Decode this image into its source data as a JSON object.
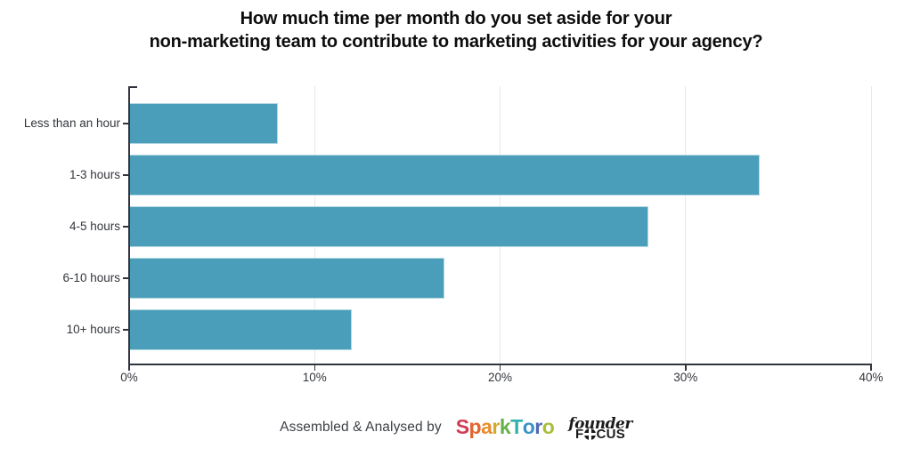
{
  "title": {
    "line1": "How much time per month do you set aside for your",
    "line2": "non-marketing team to contribute to marketing activities for your agency?"
  },
  "chart_data": {
    "type": "bar",
    "orientation": "horizontal",
    "title": "How much time per month do you set aside for your non-marketing team to contribute to marketing activities for your agency?",
    "categories": [
      "Less than an hour",
      "1-3 hours",
      "4-5 hours",
      "6-10 hours",
      "10+ hours"
    ],
    "values": [
      8,
      34,
      28,
      17,
      12
    ],
    "value_unit": "%",
    "xlabel": "",
    "ylabel": "",
    "xlim": [
      0,
      40
    ],
    "x_ticks": [
      {
        "value": 0,
        "label": "0%"
      },
      {
        "value": 10,
        "label": "10%"
      },
      {
        "value": 20,
        "label": "20%"
      },
      {
        "value": 30,
        "label": "30%"
      },
      {
        "value": 40,
        "label": "40%"
      }
    ],
    "grid": "vertical-light",
    "legend": "none",
    "bar_color": "#4a9eb9",
    "bar_border_color": "#b5d7e4",
    "axis_color": "#30343c",
    "gridline_color": "#e9e9e9",
    "label_color": "#33363c"
  },
  "footer": {
    "credit_text": "Assembled & Analysed by",
    "sparktoro": {
      "name": "SparkToro",
      "letters": [
        {
          "ch": "S",
          "color": "#d13b53"
        },
        {
          "ch": "p",
          "color": "#e2642f"
        },
        {
          "ch": "a",
          "color": "#eb8c2a"
        },
        {
          "ch": "r",
          "color": "#d4a929"
        },
        {
          "ch": "k",
          "color": "#66b04b"
        },
        {
          "ch": "T",
          "color": "#2fb3a9"
        },
        {
          "ch": "o",
          "color": "#3a92c8"
        },
        {
          "ch": "r",
          "color": "#4f68b5"
        },
        {
          "ch": "o",
          "color": "#a9bf3a"
        }
      ]
    },
    "founderfocus": {
      "name": "founder FOCUS",
      "script_text": "founder",
      "caps_prefix": "F",
      "caps_suffix": "CUS",
      "color": "#1b1b1b"
    }
  }
}
